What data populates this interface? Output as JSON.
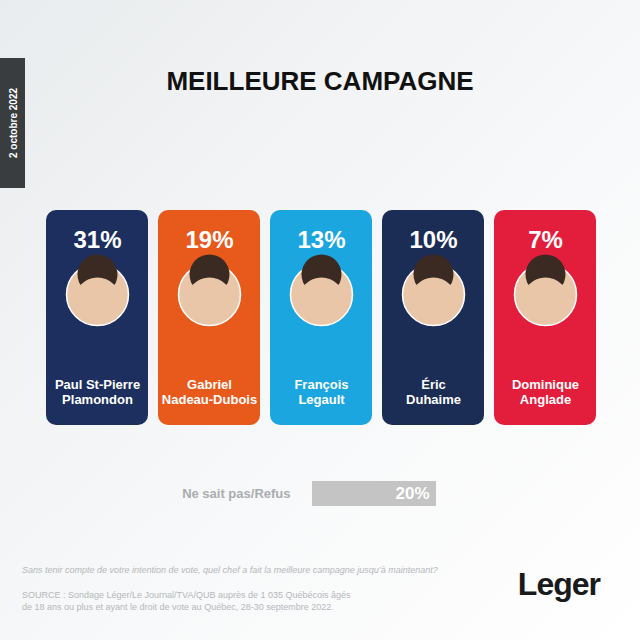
{
  "chart_data": [
    {
      "type": "cards",
      "title": "MEILLEURE CAMPAGNE",
      "categories": [
        "Paul St-Pierre Plamondon",
        "Gabriel Nadeau-Dubois",
        "François Legault",
        "Éric Duhaime",
        "Dominique Anglade"
      ],
      "values": [
        31,
        19,
        13,
        10,
        7
      ],
      "value_labels": [
        "31%",
        "19%",
        "13%",
        "10%",
        "7%"
      ],
      "colors": [
        "#1c2f5e",
        "#e85a1c",
        "#1ba6e0",
        "#1b2c55",
        "#e31e3c"
      ],
      "data_labels": true,
      "tick_labels": "x"
    },
    {
      "type": "bar",
      "orientation": "horizontal",
      "categories": [
        "Ne sait pas/Refus"
      ],
      "values": [
        20
      ],
      "value_labels": [
        "20%"
      ],
      "xlim": [
        0,
        20
      ],
      "xticks": [],
      "color": "#c4c4c4",
      "data_labels": true,
      "tick_labels": "y"
    }
  ],
  "date": "2 octobre 2022",
  "question": "Sans tenir compte de votre intention de vote, quel chef a fait la meilleure campagne jusqu’à maintenant?",
  "source": "SOURCE : Sondage Léger/Le Journal/TVA/QUB auprès de 1 035 Québécois âgés de 18 ans ou plus et ayant le droit de vote au Québec, 28-30 septembre 2022.",
  "logo": "Leger"
}
